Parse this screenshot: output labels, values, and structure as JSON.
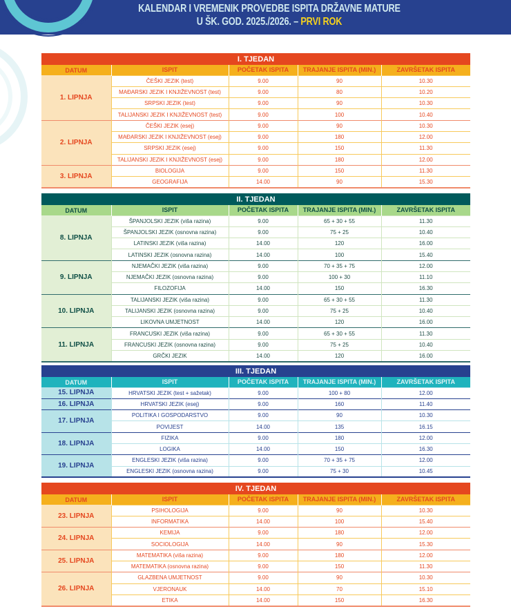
{
  "header": {
    "title_line1": "KALENDAR I VREMENIK PROVEDBE ISPITA DRŽAVNE MATURE",
    "title_line2": "U ŠK. GOD. 2025./2026. – ",
    "title_highlight": "PRVI ROK"
  },
  "columns": [
    "DATUM",
    "ISPIT",
    "POČETAK ISPITA",
    "TRAJANJE ISPITA (MIN.)",
    "ZAVRŠETAK ISPITA"
  ],
  "colors": {
    "banner": "#27418f",
    "orange": "#e5471f",
    "yellow": "#f5b01d",
    "green_dark": "#005a5b",
    "green_light": "#a8d88a",
    "teal": "#1fb3bd",
    "navy": "#27418f"
  },
  "weeks": [
    {
      "title": "I. TJEDAN",
      "theme": "orange",
      "days": [
        {
          "date": "1. LIPNJA",
          "exams": [
            [
              "ČEŠKI JEZIK (test)",
              "9.00",
              "90",
              "10.30"
            ],
            [
              "MAĐARSKI JEZIK I KNJIŽEVNOST (test)",
              "9.00",
              "80",
              "10.20"
            ],
            [
              "SRPSKI JEZIK (test)",
              "9.00",
              "90",
              "10.30"
            ],
            [
              "TALIJANSKI JEZIK I KNJIŽEVNOST (test)",
              "9.00",
              "100",
              "10.40"
            ]
          ]
        },
        {
          "date": "2. LIPNJA",
          "exams": [
            [
              "ČEŠKI JEZIK (esej)",
              "9.00",
              "90",
              "10.30"
            ],
            [
              "MAĐARSKI JEZIK I KNJIŽEVNOST (esej)",
              "9.00",
              "180",
              "12.00"
            ],
            [
              "SRPSKI JEZIK (esej)",
              "9.00",
              "150",
              "11.30"
            ],
            [
              "TALIJANSKI JEZIK I KNJIŽEVNOST (esej)",
              "9.00",
              "180",
              "12.00"
            ]
          ]
        },
        {
          "date": "3. LIPNJA",
          "exams": [
            [
              "BIOLOGIJA",
              "9.00",
              "150",
              "11.30"
            ],
            [
              "GEOGRAFIJA",
              "14.00",
              "90",
              "15.30"
            ]
          ]
        }
      ]
    },
    {
      "title": "II. TJEDAN",
      "theme": "green",
      "days": [
        {
          "date": "8. LIPNJA",
          "exams": [
            [
              "ŠPANJOLSKI JEZIK (viša razina)",
              "9.00",
              "65 + 30 + 55",
              "11.30"
            ],
            [
              "ŠPANJOLSKI JEZIK (osnovna razina)",
              "9.00",
              "75 + 25",
              "10.40"
            ],
            [
              "LATINSKI JEZIK (viša razina)",
              "14.00",
              "120",
              "16.00"
            ],
            [
              "LATINSKI JEZIK (osnovna razina)",
              "14.00",
              "100",
              "15.40"
            ]
          ]
        },
        {
          "date": "9. LIPNJA",
          "exams": [
            [
              "NJEMAČKI JEZIK (viša razina)",
              "9.00",
              "70 + 35 + 75",
              "12.00"
            ],
            [
              "NJEMAČKI JEZIK (osnovna razina)",
              "9.00",
              "100 + 30",
              "11.10"
            ],
            [
              "FILOZOFIJA",
              "14.00",
              "150",
              "16.30"
            ]
          ]
        },
        {
          "date": "10. LIPNJA",
          "exams": [
            [
              "TALIJANSKI JEZIK (viša razina)",
              "9.00",
              "65 + 30 + 55",
              "11.30"
            ],
            [
              "TALIJANSKI JEZIK (osnovna razina)",
              "9.00",
              "75 + 25",
              "10.40"
            ],
            [
              "LIKOVNA UMJETNOST",
              "14.00",
              "120",
              "16.00"
            ]
          ]
        },
        {
          "date": "11. LIPNJA",
          "exams": [
            [
              "FRANCUSKI JEZIK (viša razina)",
              "9.00",
              "65 + 30 + 55",
              "11.30"
            ],
            [
              "FRANCUSKI JEZIK (osnovna razina)",
              "9.00",
              "75 + 25",
              "10.40"
            ],
            [
              "GRČKI JEZIK",
              "14.00",
              "120",
              "16.00"
            ]
          ]
        }
      ]
    },
    {
      "title": "III. TJEDAN",
      "theme": "blue",
      "days": [
        {
          "date": "15. LIPNJA",
          "exams": [
            [
              "HRVATSKI JEZIK (test + sažetak)",
              "9.00",
              "100 + 80",
              "12.00"
            ]
          ]
        },
        {
          "date": "16. LIPNJA",
          "exams": [
            [
              "HRVATSKI JEZIK (esej)",
              "9.00",
              "160",
              "11.40"
            ]
          ]
        },
        {
          "date": "17. LIPNJA",
          "exams": [
            [
              "POLITIKA I GOSPODARSTVO",
              "9.00",
              "90",
              "10.30"
            ],
            [
              "POVIJEST",
              "14.00",
              "135",
              "16.15"
            ]
          ]
        },
        {
          "date": "18. LIPNJA",
          "exams": [
            [
              "FIZIKA",
              "9.00",
              "180",
              "12.00"
            ],
            [
              "LOGIKA",
              "14.00",
              "150",
              "16.30"
            ]
          ]
        },
        {
          "date": "19. LIPNJA",
          "exams": [
            [
              "ENGLESKI JEZIK (viša razina)",
              "9.00",
              "70 + 35 + 75",
              "12.00"
            ],
            [
              "ENGLESKI JEZIK (osnovna razina)",
              "9.00",
              "75 + 30",
              "10.45"
            ]
          ]
        }
      ]
    },
    {
      "title": "IV. TJEDAN",
      "theme": "orange",
      "days": [
        {
          "date": "23. LIPNJA",
          "exams": [
            [
              "PSIHOLOGIJA",
              "9.00",
              "90",
              "10.30"
            ],
            [
              "INFORMATIKA",
              "14.00",
              "100",
              "15.40"
            ]
          ]
        },
        {
          "date": "24. LIPNJA",
          "exams": [
            [
              "KEMIJA",
              "9.00",
              "180",
              "12.00"
            ],
            [
              "SOCIOLOGIJA",
              "14.00",
              "90",
              "15.30"
            ]
          ]
        },
        {
          "date": "25. LIPNJA",
          "exams": [
            [
              "MATEMATIKA (viša razina)",
              "9.00",
              "180",
              "12.00"
            ],
            [
              "MATEMATIKA (osnovna razina)",
              "9.00",
              "150",
              "11.30"
            ]
          ]
        },
        {
          "date": "26. LIPNJA",
          "exams": [
            [
              "GLAZBENA UMJETNOST",
              "9.00",
              "90",
              "10.30"
            ],
            [
              "VJERONAUK",
              "14.00",
              "70",
              "15.10"
            ],
            [
              "ETIKA",
              "14.00",
              "150",
              "16.30"
            ]
          ]
        }
      ]
    }
  ]
}
